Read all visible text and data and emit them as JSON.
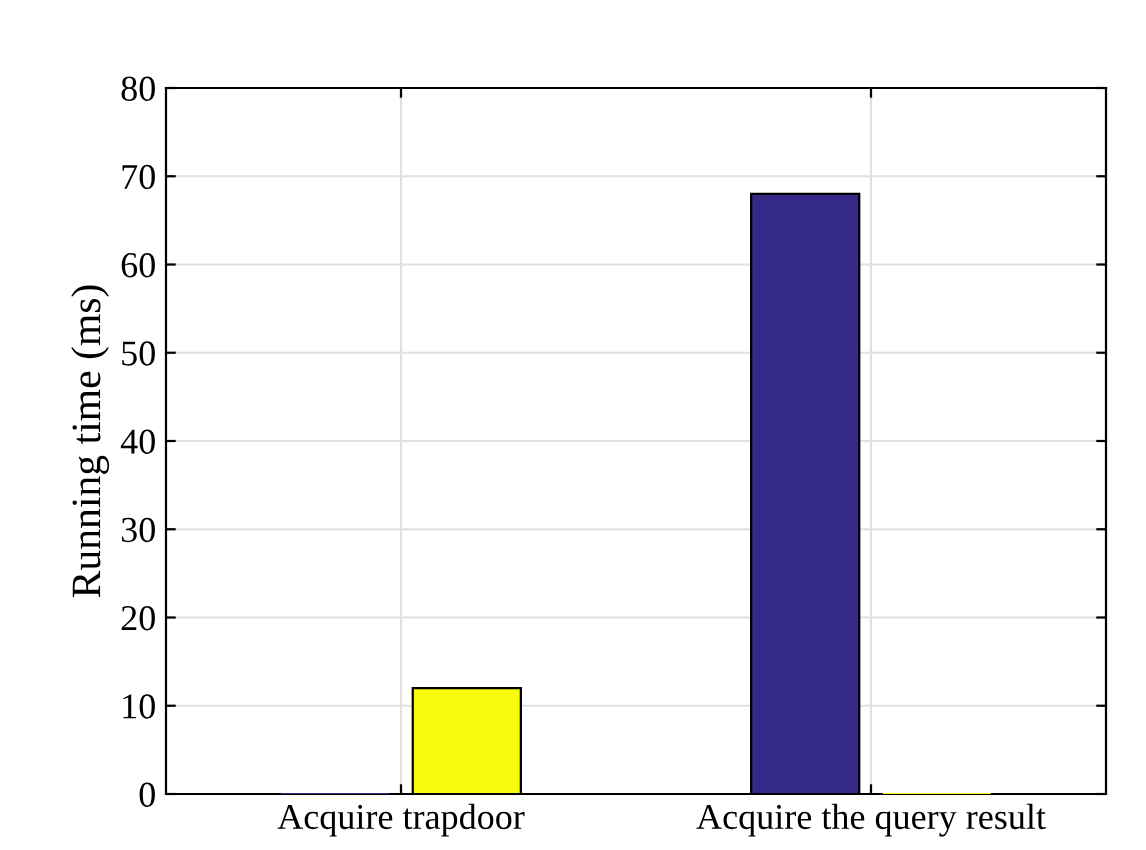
{
  "chart_data": {
    "type": "bar",
    "ylabel": "Running time (ms)",
    "categories": [
      "Acquire trapdoor",
      "Acquire the query result"
    ],
    "series": [
      {
        "color": "#352a87",
        "values": [
          0,
          68
        ]
      },
      {
        "color": "#f9fb0e",
        "values": [
          12,
          0
        ]
      }
    ],
    "ylim": [
      0,
      80
    ],
    "yticks": [
      0,
      10,
      20,
      30,
      40,
      50,
      60,
      70,
      80
    ],
    "grid": true,
    "legend": false
  }
}
